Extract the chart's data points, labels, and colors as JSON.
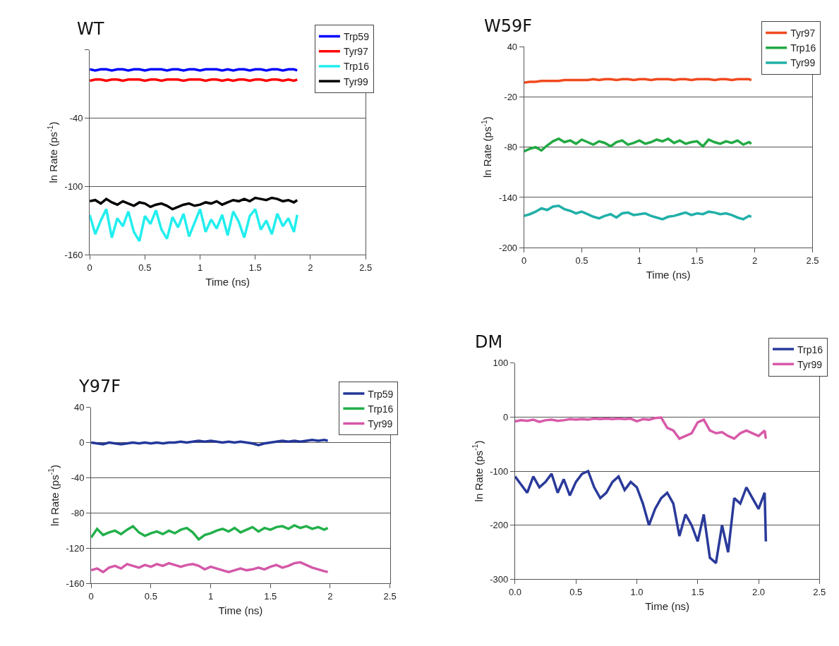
{
  "chart_data": [
    {
      "type": "line",
      "title": "WT",
      "xlabel": "Time (ns)",
      "ylabel": "ln Rate (ps$^{-1}$)",
      "xlim": [
        0,
        2.5
      ],
      "xticks": [
        0,
        0.5,
        1,
        1.5,
        2,
        2.5
      ],
      "ylim": [
        -160,
        20
      ],
      "yticks": [
        -160,
        -100,
        -40,
        {
          "value": 20,
          "label": null
        }
      ],
      "grid": "y",
      "legend": "top right",
      "x": [
        0,
        0.05,
        0.1,
        0.15,
        0.2,
        0.25,
        0.3,
        0.35,
        0.4,
        0.45,
        0.5,
        0.55,
        0.6,
        0.65,
        0.7,
        0.75,
        0.8,
        0.85,
        0.9,
        0.95,
        1,
        1.05,
        1.1,
        1.15,
        1.2,
        1.25,
        1.3,
        1.35,
        1.4,
        1.45,
        1.5,
        1.55,
        1.6,
        1.65,
        1.7,
        1.75,
        1.8,
        1.85,
        1.88
      ],
      "series": [
        {
          "name": "Trp59",
          "color": "#0000ff",
          "values": [
            3,
            2,
            3,
            3,
            2,
            3,
            3,
            2,
            3,
            3,
            2,
            3,
            3,
            3,
            2,
            3,
            3,
            2,
            3,
            3,
            2,
            3,
            3,
            3,
            2,
            3,
            2,
            3,
            3,
            2,
            3,
            3,
            2,
            3,
            3,
            2,
            3,
            3,
            2
          ]
        },
        {
          "name": "Tyr97",
          "color": "#ff0000",
          "values": [
            -7,
            -6,
            -6,
            -7,
            -6,
            -6,
            -7,
            -6,
            -6,
            -6,
            -7,
            -6,
            -6,
            -7,
            -6,
            -6,
            -6,
            -7,
            -6,
            -6,
            -6,
            -7,
            -6,
            -6,
            -7,
            -6,
            -7,
            -6,
            -6,
            -7,
            -6,
            -6,
            -7,
            -6,
            -6,
            -7,
            -6,
            -7,
            -6
          ]
        },
        {
          "name": "Trp16",
          "color": "#22eeee",
          "values": [
            -125,
            -142,
            -130,
            -120,
            -145,
            -128,
            -135,
            -122,
            -140,
            -148,
            -126,
            -133,
            -121,
            -138,
            -146,
            -127,
            -136,
            -124,
            -144,
            -132,
            -120,
            -140,
            -129,
            -137,
            -125,
            -143,
            -122,
            -131,
            -145,
            -126,
            -120,
            -138,
            -130,
            -142,
            -124,
            -135,
            -128,
            -140,
            -125
          ]
        },
        {
          "name": "Tyr99",
          "color": "#000000",
          "values": [
            -113,
            -112,
            -115,
            -111,
            -114,
            -116,
            -113,
            -115,
            -117,
            -114,
            -115,
            -118,
            -116,
            -115,
            -117,
            -120,
            -118,
            -116,
            -115,
            -117,
            -116,
            -114,
            -115,
            -113,
            -116,
            -114,
            -112,
            -113,
            -111,
            -113,
            -110,
            -111,
            -112,
            -110,
            -111,
            -113,
            -112,
            -114,
            -112
          ]
        }
      ]
    },
    {
      "type": "line",
      "title": "W59F",
      "xlabel": "Time (ns)",
      "ylabel": "ln Rate (ps$^{-1}$)",
      "xlim": [
        0,
        2.5
      ],
      "xticks": [
        0,
        0.5,
        1,
        1.5,
        2,
        2.5
      ],
      "ylim": [
        -200,
        40
      ],
      "yticks": [
        -200,
        -140,
        -80,
        -20,
        40
      ],
      "grid": "y",
      "legend": "top right",
      "x": [
        0,
        0.05,
        0.1,
        0.15,
        0.2,
        0.25,
        0.3,
        0.35,
        0.4,
        0.45,
        0.5,
        0.55,
        0.6,
        0.65,
        0.7,
        0.75,
        0.8,
        0.85,
        0.9,
        0.95,
        1,
        1.05,
        1.1,
        1.15,
        1.2,
        1.25,
        1.3,
        1.35,
        1.4,
        1.45,
        1.5,
        1.55,
        1.6,
        1.65,
        1.7,
        1.75,
        1.8,
        1.85,
        1.9,
        1.95,
        1.97
      ],
      "series": [
        {
          "name": "Tyr97",
          "color": "#f04a1e",
          "values": [
            -3,
            -2,
            -2,
            -1,
            -1,
            -1,
            -1,
            0,
            0,
            0,
            0,
            0,
            1,
            0,
            1,
            1,
            0,
            1,
            1,
            0,
            1,
            1,
            0,
            1,
            1,
            1,
            0,
            1,
            1,
            0,
            1,
            1,
            1,
            0,
            1,
            1,
            0,
            1,
            1,
            1,
            0
          ]
        },
        {
          "name": "Trp16",
          "color": "#22aa44",
          "values": [
            -85,
            -82,
            -80,
            -84,
            -78,
            -73,
            -70,
            -74,
            -72,
            -76,
            -71,
            -74,
            -77,
            -73,
            -75,
            -79,
            -74,
            -72,
            -77,
            -75,
            -72,
            -76,
            -74,
            -71,
            -73,
            -70,
            -75,
            -72,
            -76,
            -74,
            -73,
            -79,
            -71,
            -74,
            -76,
            -73,
            -75,
            -72,
            -77,
            -74,
            -76
          ]
        },
        {
          "name": "Tyr99",
          "color": "#20b0a8",
          "values": [
            -162,
            -160,
            -157,
            -153,
            -155,
            -151,
            -150,
            -154,
            -156,
            -159,
            -157,
            -160,
            -163,
            -165,
            -162,
            -160,
            -164,
            -159,
            -158,
            -161,
            -160,
            -159,
            -162,
            -164,
            -166,
            -163,
            -162,
            -160,
            -158,
            -161,
            -159,
            -160,
            -157,
            -158,
            -160,
            -159,
            -161,
            -164,
            -166,
            -162,
            -163
          ]
        }
      ]
    },
    {
      "type": "line",
      "title": "Y97F",
      "xlabel": "Time (ns)",
      "ylabel": "ln Rate (ps$^{-1}$)",
      "xlim": [
        0,
        2.5
      ],
      "xticks": [
        0,
        0.5,
        1,
        1.5,
        2,
        2.5
      ],
      "ylim": [
        -160,
        40
      ],
      "yticks": [
        -160,
        -120,
        -80,
        -40,
        0,
        40
      ],
      "grid": "y",
      "legend": "top right",
      "x": [
        0,
        0.05,
        0.1,
        0.15,
        0.2,
        0.25,
        0.3,
        0.35,
        0.4,
        0.45,
        0.5,
        0.55,
        0.6,
        0.65,
        0.7,
        0.75,
        0.8,
        0.85,
        0.9,
        0.95,
        1,
        1.05,
        1.1,
        1.15,
        1.2,
        1.25,
        1.3,
        1.35,
        1.4,
        1.45,
        1.5,
        1.55,
        1.6,
        1.65,
        1.7,
        1.75,
        1.8,
        1.85,
        1.9,
        1.95,
        1.98
      ],
      "series": [
        {
          "name": "Trp59",
          "color": "#23379a",
          "values": [
            0,
            -1,
            -2,
            0,
            -1,
            -2,
            -1,
            0,
            -1,
            0,
            -1,
            0,
            -1,
            0,
            0,
            1,
            0,
            1,
            2,
            1,
            2,
            1,
            0,
            1,
            0,
            1,
            0,
            -1,
            -3,
            -1,
            0,
            1,
            2,
            1,
            2,
            1,
            2,
            3,
            2,
            3,
            2
          ]
        },
        {
          "name": "Trp16",
          "color": "#22b04a",
          "values": [
            -108,
            -98,
            -105,
            -102,
            -100,
            -104,
            -99,
            -95,
            -102,
            -106,
            -103,
            -101,
            -104,
            -100,
            -103,
            -99,
            -97,
            -102,
            -110,
            -105,
            -103,
            -100,
            -98,
            -101,
            -97,
            -102,
            -99,
            -96,
            -101,
            -97,
            -99,
            -96,
            -95,
            -98,
            -94,
            -97,
            -95,
            -98,
            -96,
            -99,
            -97
          ]
        },
        {
          "name": "Tyr99",
          "color": "#d458a8",
          "values": [
            -145,
            -143,
            -147,
            -142,
            -140,
            -143,
            -138,
            -140,
            -142,
            -139,
            -141,
            -138,
            -140,
            -137,
            -139,
            -141,
            -139,
            -138,
            -140,
            -144,
            -141,
            -143,
            -145,
            -147,
            -145,
            -143,
            -145,
            -144,
            -142,
            -144,
            -141,
            -139,
            -142,
            -140,
            -137,
            -136,
            -139,
            -142,
            -144,
            -146,
            -147
          ]
        }
      ]
    },
    {
      "type": "line",
      "title": "DM",
      "xlabel": "Time (ns)",
      "ylabel": "ln Rate (ps$^{-1}$)",
      "xlim": [
        0,
        2.5
      ],
      "xticks": [
        {
          "value": 0,
          "label": "0.0"
        },
        {
          "value": 0.5,
          "label": "0.5"
        },
        {
          "value": 1,
          "label": "1.0"
        },
        {
          "value": 1.5,
          "label": "1.5"
        },
        {
          "value": 2,
          "label": "2.0"
        },
        {
          "value": 2.5,
          "label": "2.5"
        }
      ],
      "ylim": [
        -300,
        100
      ],
      "yticks": [
        -300,
        -200,
        -100,
        0,
        100
      ],
      "grid": "y",
      "legend": "top right",
      "x": [
        0,
        0.05,
        0.1,
        0.15,
        0.2,
        0.25,
        0.3,
        0.35,
        0.4,
        0.45,
        0.5,
        0.55,
        0.6,
        0.65,
        0.7,
        0.75,
        0.8,
        0.85,
        0.9,
        0.95,
        1,
        1.05,
        1.1,
        1.15,
        1.2,
        1.25,
        1.3,
        1.35,
        1.4,
        1.45,
        1.5,
        1.55,
        1.6,
        1.65,
        1.7,
        1.75,
        1.8,
        1.85,
        1.9,
        1.95,
        2,
        2.05,
        2.06
      ],
      "series": [
        {
          "name": "Trp16",
          "color": "#2a3a9a",
          "values": [
            -110,
            -125,
            -140,
            -110,
            -130,
            -120,
            -105,
            -140,
            -115,
            -145,
            -120,
            -105,
            -100,
            -130,
            -150,
            -140,
            -120,
            -110,
            -135,
            -120,
            -130,
            -160,
            -200,
            -170,
            -150,
            -140,
            -160,
            -220,
            -180,
            -200,
            -230,
            -180,
            -260,
            -270,
            -200,
            -250,
            -150,
            -160,
            -130,
            -150,
            -170,
            -140,
            -230
          ]
        },
        {
          "name": "Tyr99",
          "color": "#d85aa8",
          "values": [
            -8,
            -6,
            -7,
            -5,
            -9,
            -6,
            -5,
            -7,
            -6,
            -4,
            -5,
            -4,
            -5,
            -3,
            -4,
            -3,
            -4,
            -3,
            -4,
            -3,
            -8,
            -4,
            -5,
            -2,
            -1,
            -20,
            -25,
            -40,
            -35,
            -30,
            -10,
            -5,
            -25,
            -30,
            -28,
            -35,
            -40,
            -30,
            -25,
            -30,
            -35,
            -25,
            -40
          ]
        }
      ]
    }
  ]
}
